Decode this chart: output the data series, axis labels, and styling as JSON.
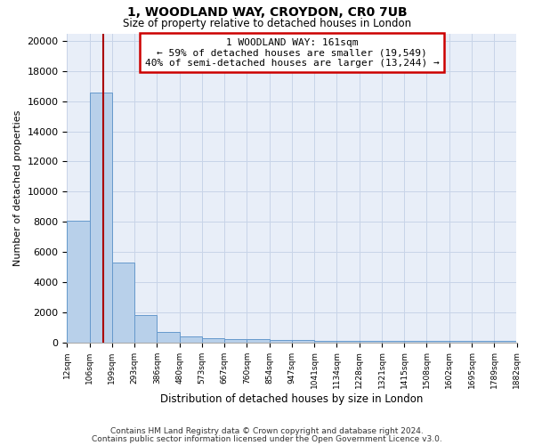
{
  "title": "1, WOODLAND WAY, CROYDON, CR0 7UB",
  "subtitle": "Size of property relative to detached houses in London",
  "xlabel": "Distribution of detached houses by size in London",
  "ylabel": "Number of detached properties",
  "bin_labels": [
    "12sqm",
    "106sqm",
    "199sqm",
    "293sqm",
    "386sqm",
    "480sqm",
    "573sqm",
    "667sqm",
    "760sqm",
    "854sqm",
    "947sqm",
    "1041sqm",
    "1134sqm",
    "1228sqm",
    "1321sqm",
    "1415sqm",
    "1508sqm",
    "1602sqm",
    "1695sqm",
    "1789sqm",
    "1882sqm"
  ],
  "bar_heights": [
    8050,
    16550,
    5300,
    1800,
    700,
    380,
    270,
    220,
    185,
    155,
    130,
    115,
    110,
    105,
    100,
    95,
    90,
    85,
    80,
    75
  ],
  "bar_color": "#b8d0ea",
  "bar_edge_color": "#6699cc",
  "vline_color": "#aa0000",
  "annotation_text": "1 WOODLAND WAY: 161sqm\n← 59% of detached houses are smaller (19,549)\n40% of semi-detached houses are larger (13,244) →",
  "annotation_box_color": "#ffffff",
  "annotation_box_edge": "#cc0000",
  "ylim": [
    0,
    20500
  ],
  "yticks": [
    0,
    2000,
    4000,
    6000,
    8000,
    10000,
    12000,
    14000,
    16000,
    18000,
    20000
  ],
  "footer_line1": "Contains HM Land Registry data © Crown copyright and database right 2024.",
  "footer_line2": "Contains public sector information licensed under the Open Government Licence v3.0.",
  "grid_color": "#c8d4e8",
  "background_color": "#e8eef8"
}
